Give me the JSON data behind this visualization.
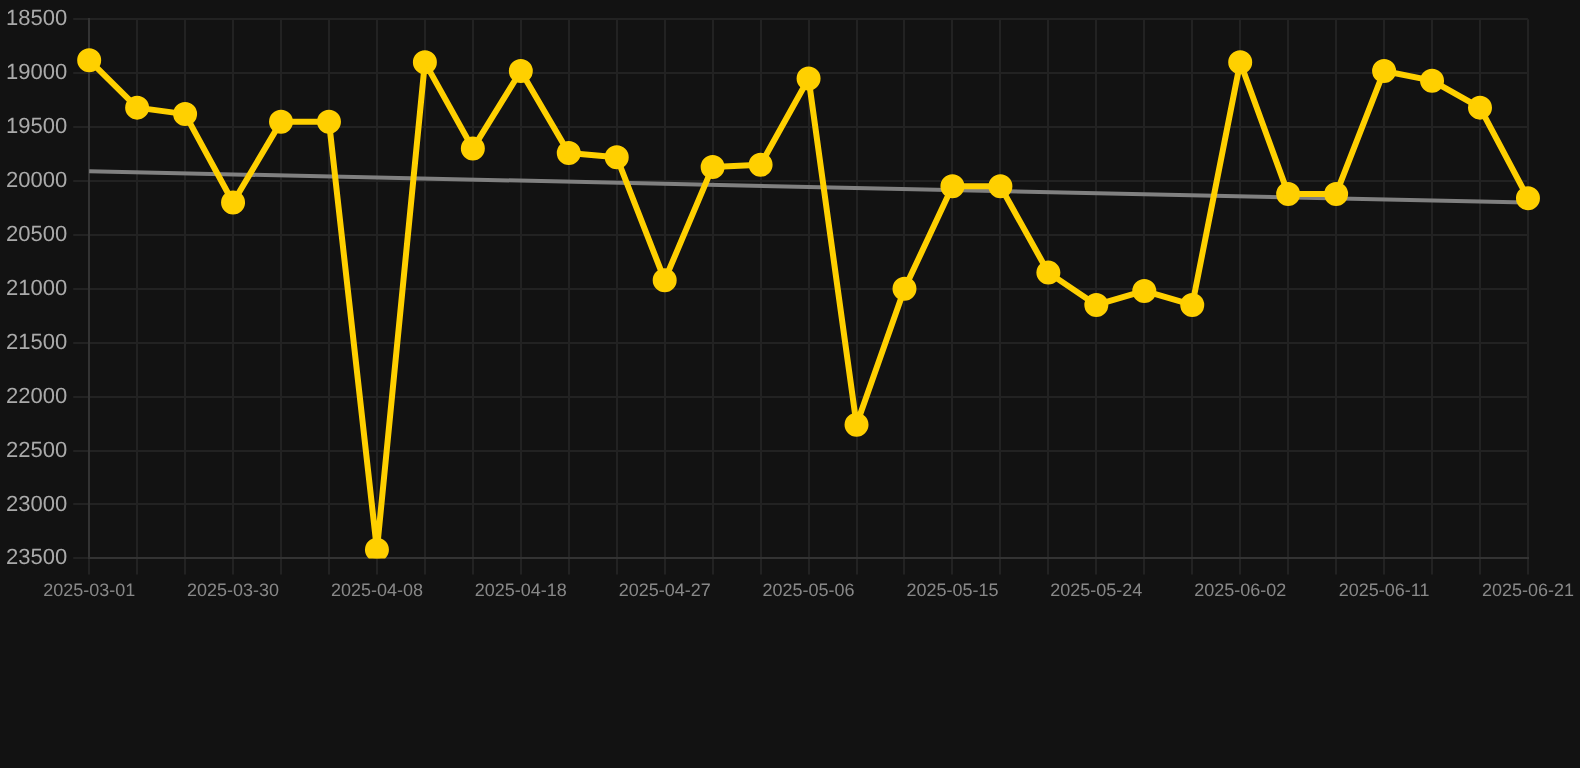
{
  "chart_data": {
    "type": "line",
    "categories": [
      "2025-03-01",
      null,
      null,
      "2025-03-30",
      null,
      null,
      "2025-04-08",
      null,
      null,
      "2025-04-18",
      null,
      null,
      "2025-04-27",
      null,
      null,
      "2025-05-06",
      null,
      null,
      "2025-05-15",
      null,
      null,
      "2025-05-24",
      null,
      null,
      "2025-06-02",
      null,
      null,
      "2025-06-11",
      null,
      null,
      "2025-06-21"
    ],
    "series": [
      {
        "color": "#ffd000",
        "marker": "circle",
        "values": [
          18880,
          19320,
          19380,
          20200,
          19450,
          19450,
          23420,
          18900,
          19700,
          18980,
          19740,
          19780,
          20920,
          19870,
          19850,
          19050,
          22260,
          21000,
          20050,
          20050,
          20850,
          21150,
          21020,
          21150,
          18900,
          20120,
          20120,
          18980,
          19070,
          19320,
          20160
        ]
      },
      {
        "type": "line",
        "color": "#808080",
        "marker": "none",
        "values": [
          19910,
          null,
          null,
          null,
          null,
          null,
          null,
          null,
          null,
          null,
          null,
          null,
          null,
          null,
          null,
          null,
          null,
          null,
          null,
          null,
          null,
          null,
          null,
          null,
          null,
          null,
          null,
          null,
          null,
          null,
          20200
        ]
      }
    ],
    "ylim": [
      23500,
      18500
    ],
    "yticks": [
      18500,
      19000,
      19500,
      20000,
      20500,
      21000,
      21500,
      22000,
      22500,
      23000,
      23500
    ],
    "grid": true,
    "legend": false
  }
}
